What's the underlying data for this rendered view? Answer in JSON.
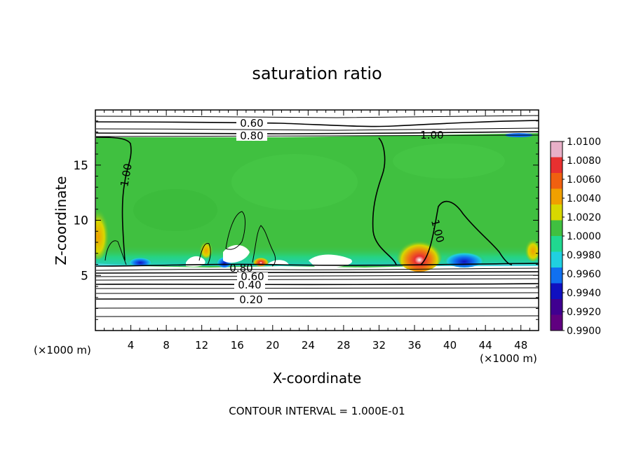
{
  "chart_data": {
    "type": "heatmap",
    "title": "saturation ratio",
    "xlabel": "X-coordinate",
    "ylabel": "Z-coordinate",
    "x_unit_left": "(×1000 m)",
    "x_unit_right": "(×1000 m)",
    "footer": "CONTOUR INTERVAL = 1.000E-01",
    "xlim": [
      0,
      50
    ],
    "ylim": [
      0,
      20
    ],
    "x_ticks": [
      4,
      8,
      12,
      16,
      20,
      24,
      28,
      32,
      36,
      40,
      44,
      48
    ],
    "x_tick_labels": [
      "4",
      "8",
      "12",
      "16",
      "20",
      "24",
      "28",
      "32",
      "36",
      "40",
      "44",
      "48"
    ],
    "y_ticks": [
      5,
      10,
      15
    ],
    "y_tick_labels": [
      "5",
      "10",
      "15"
    ],
    "colorbar": {
      "min": 0.99,
      "max": 1.01,
      "labels": [
        "1.0100",
        "1.0080",
        "1.0060",
        "1.0040",
        "1.0020",
        "1.0000",
        "0.9980",
        "0.9960",
        "0.9940",
        "0.9920",
        "0.9900"
      ],
      "colors": [
        "#e8b0c8",
        "#e83030",
        "#f06010",
        "#f0a000",
        "#d8d800",
        "#40c040",
        "#20d890",
        "#20d0e0",
        "#1070f0",
        "#1010c0",
        "#400090",
        "#600080"
      ]
    },
    "contour_labels": [
      "0.60",
      "0.80",
      "1.00",
      "1.00",
      "1.00",
      "0.80",
      "0.60",
      "0.40",
      "0.20"
    ],
    "contour_interval": 0.1,
    "background_field": 1.0
  }
}
